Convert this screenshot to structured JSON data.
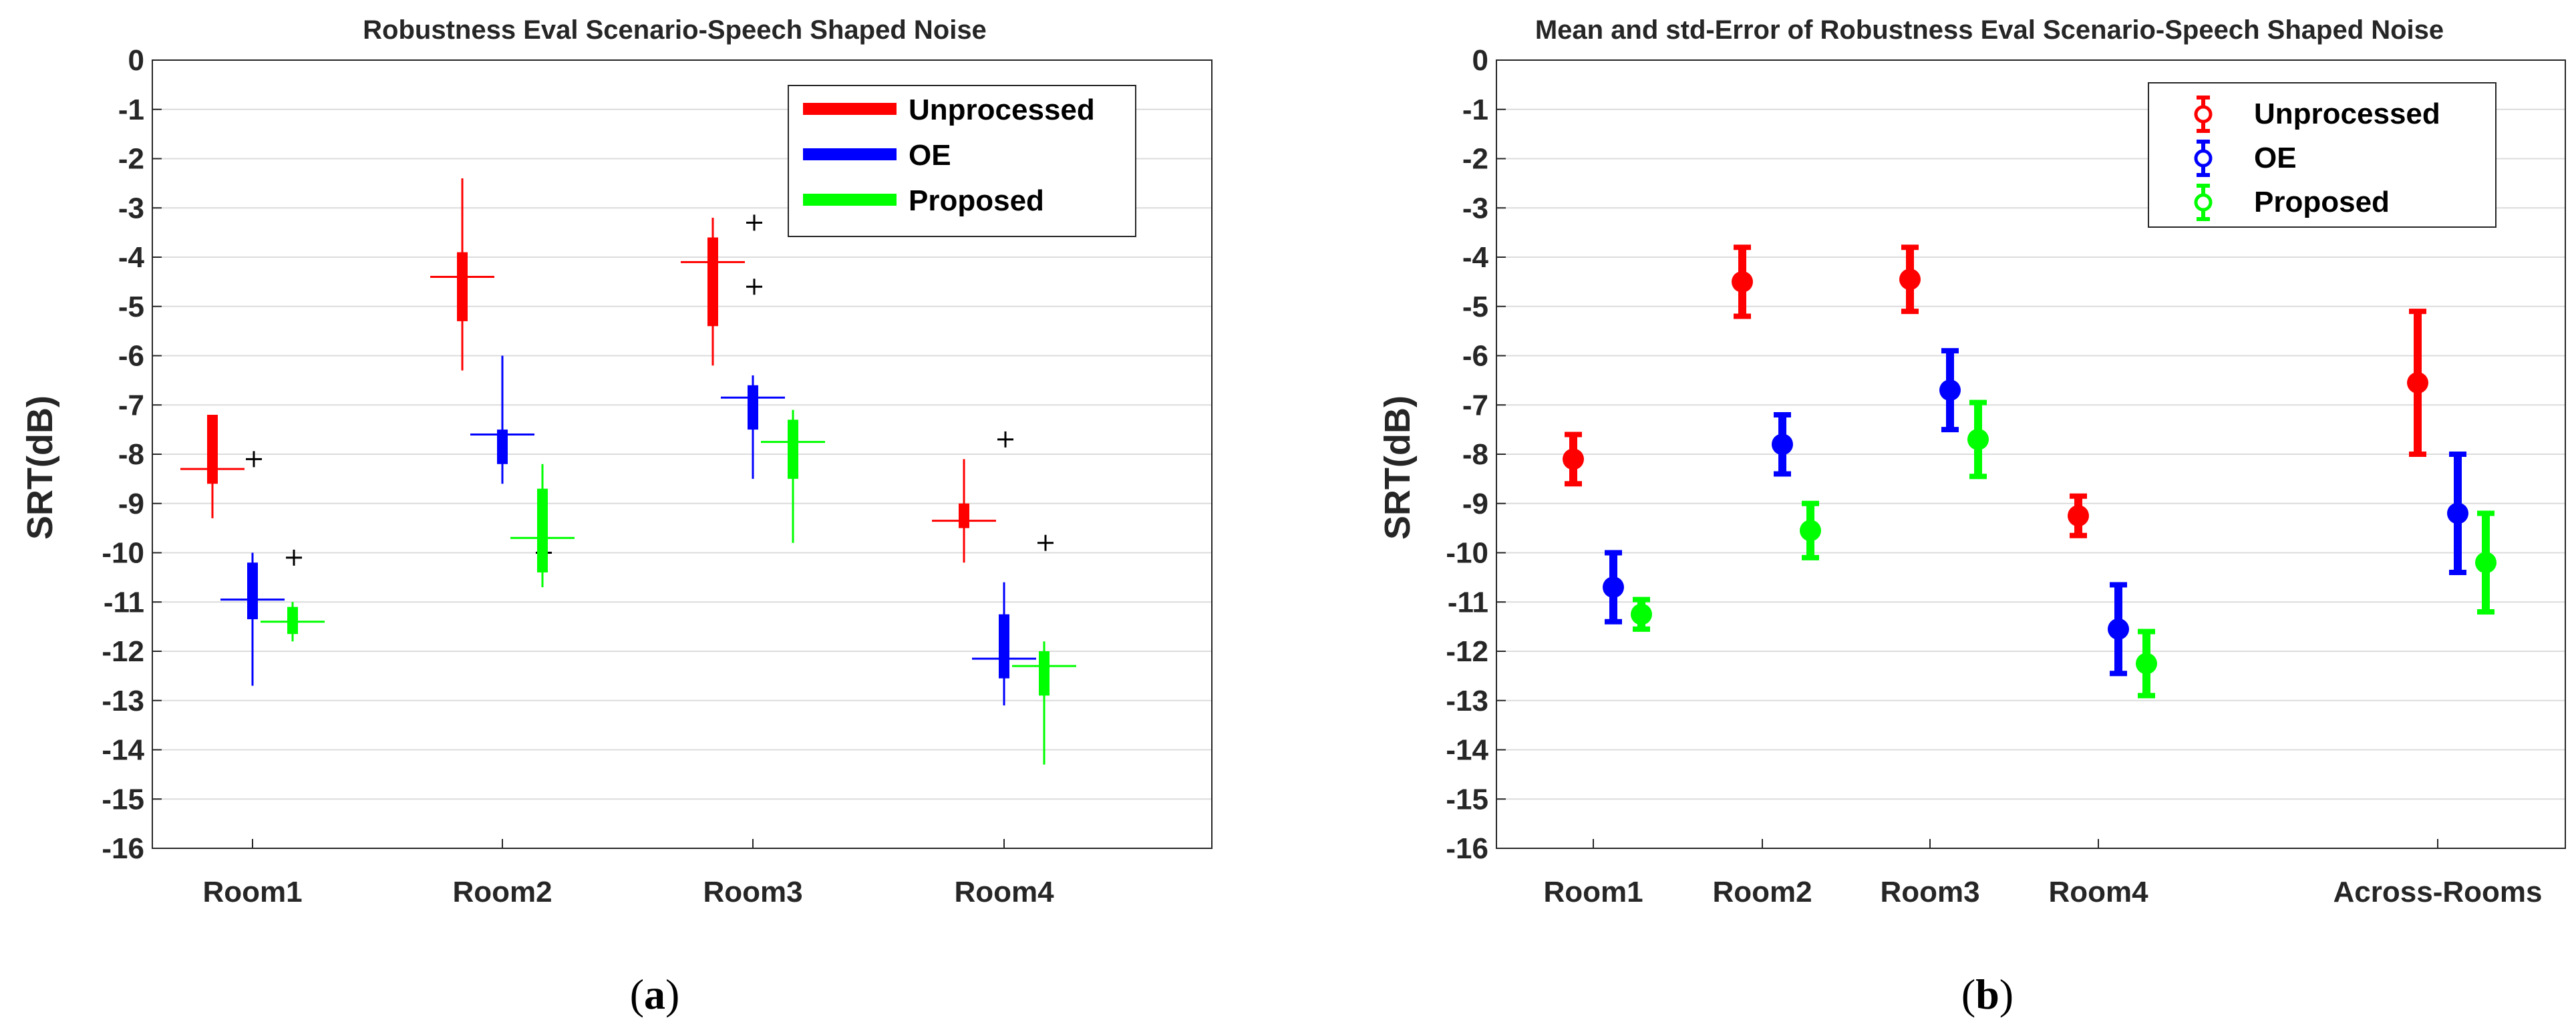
{
  "chart_data": [
    {
      "type": "box",
      "panel_label": "a",
      "title": "Robustness Eval Scenario-Speech Shaped Noise",
      "xlabel": "",
      "ylabel": "SRT(dB)",
      "ylim": [
        -16,
        0
      ],
      "yticks": [
        0,
        -1,
        -2,
        -3,
        -4,
        -5,
        -6,
        -7,
        -8,
        -9,
        -10,
        -11,
        -12,
        -13,
        -14,
        -15,
        -16
      ],
      "grid": true,
      "legend_position": "top-right",
      "categories": [
        "Room1",
        "Room2",
        "Room3",
        "Room4"
      ],
      "series": [
        {
          "name": "Unprocessed",
          "color": "#ff0000",
          "boxes": [
            {
              "min": -9.3,
              "q1": -8.6,
              "median": -8.3,
              "q3": -7.2,
              "max": -7.2,
              "outliers": [
                -8.1
              ]
            },
            {
              "min": -6.3,
              "q1": -5.3,
              "median": -4.4,
              "q3": -3.9,
              "max": -2.4,
              "outliers": []
            },
            {
              "min": -6.2,
              "q1": -5.4,
              "median": -4.1,
              "q3": -3.6,
              "max": -3.2,
              "outliers": [
                -3.3,
                -4.6
              ]
            },
            {
              "min": -10.2,
              "q1": -9.5,
              "median": -9.35,
              "q3": -9.0,
              "max": -8.1,
              "outliers": [
                -7.7
              ]
            }
          ]
        },
        {
          "name": "OE",
          "color": "#0000ff",
          "boxes": [
            {
              "min": -12.7,
              "q1": -11.35,
              "median": -10.95,
              "q3": -10.2,
              "max": -10.0,
              "outliers": [
                -10.1
              ]
            },
            {
              "min": -8.6,
              "q1": -8.2,
              "median": -7.6,
              "q3": -7.5,
              "max": -6.0,
              "outliers": [
                -10.0
              ]
            },
            {
              "min": -8.5,
              "q1": -7.5,
              "median": -6.85,
              "q3": -6.6,
              "max": -6.4,
              "outliers": []
            },
            {
              "min": -13.1,
              "q1": -12.55,
              "median": -12.15,
              "q3": -11.25,
              "max": -10.6,
              "outliers": [
                -9.8
              ]
            }
          ]
        },
        {
          "name": "Proposed",
          "color": "#00ff00",
          "boxes": [
            {
              "min": -11.8,
              "q1": -11.65,
              "median": -11.4,
              "q3": -11.1,
              "max": -11.0,
              "outliers": []
            },
            {
              "min": -10.7,
              "q1": -10.4,
              "median": -9.7,
              "q3": -8.7,
              "max": -8.2,
              "outliers": []
            },
            {
              "min": -9.8,
              "q1": -8.5,
              "median": -7.75,
              "q3": -7.3,
              "max": -7.1,
              "outliers": []
            },
            {
              "min": -14.3,
              "q1": -12.9,
              "median": -12.3,
              "q3": -12.0,
              "max": -11.8,
              "outliers": []
            }
          ]
        }
      ]
    },
    {
      "type": "errorbar",
      "panel_label": "b",
      "title": "Mean and std-Error of Robustness Eval Scenario-Speech Shaped Noise",
      "xlabel": "",
      "ylabel": "SRT(dB)",
      "ylim": [
        -16,
        0
      ],
      "yticks": [
        0,
        -1,
        -2,
        -3,
        -4,
        -5,
        -6,
        -7,
        -8,
        -9,
        -10,
        -11,
        -12,
        -13,
        -14,
        -15,
        -16
      ],
      "grid": true,
      "legend_position": "top-right",
      "categories": [
        "Room1",
        "Room2",
        "Room3",
        "Room4",
        "Across-Rooms"
      ],
      "series": [
        {
          "name": "Unprocessed",
          "color": "#ff0000",
          "mean": [
            -8.1,
            -4.5,
            -4.45,
            -9.25,
            -6.55
          ],
          "error": [
            0.5,
            0.7,
            0.65,
            0.4,
            1.45
          ]
        },
        {
          "name": "OE",
          "color": "#0000ff",
          "mean": [
            -10.7,
            -7.8,
            -6.7,
            -11.55,
            -9.2
          ],
          "error": [
            0.7,
            0.6,
            0.8,
            0.9,
            1.2
          ]
        },
        {
          "name": "Proposed",
          "color": "#00ff00",
          "mean": [
            -11.25,
            -9.55,
            -7.7,
            -12.25,
            -10.2
          ],
          "error": [
            0.3,
            0.55,
            0.75,
            0.65,
            1.0
          ]
        }
      ]
    }
  ]
}
